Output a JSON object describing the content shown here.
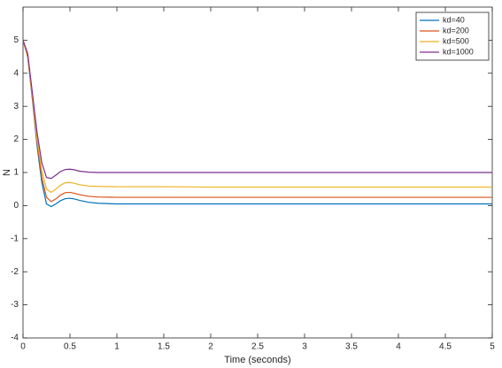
{
  "chart_data": {
    "type": "line",
    "xlabel": "Time (seconds)",
    "ylabel": "N",
    "x": [
      0,
      0.05,
      0.1,
      0.15,
      0.2,
      0.25,
      0.3,
      0.35,
      0.4,
      0.45,
      0.5,
      0.55,
      0.6,
      0.7,
      0.8,
      1,
      1.5,
      2,
      3,
      4,
      5
    ],
    "series": [
      {
        "name": "kd=40",
        "color": "#0072bd",
        "values": [
          5,
          4.5,
          3.2,
          1.8,
          0.7,
          0.05,
          -0.03,
          0.05,
          0.15,
          0.21,
          0.22,
          0.2,
          0.16,
          0.1,
          0.07,
          0.05,
          0.05,
          0.05,
          0.05,
          0.05,
          0.05
        ]
      },
      {
        "name": "kd=200",
        "color": "#d95319",
        "values": [
          5,
          4.5,
          3.25,
          1.9,
          0.85,
          0.25,
          0.12,
          0.2,
          0.32,
          0.39,
          0.4,
          0.37,
          0.33,
          0.28,
          0.26,
          0.25,
          0.25,
          0.25,
          0.25,
          0.25,
          0.25
        ]
      },
      {
        "name": "kd=500",
        "color": "#edb120",
        "values": [
          5,
          4.55,
          3.3,
          2.0,
          1.05,
          0.5,
          0.4,
          0.5,
          0.62,
          0.69,
          0.7,
          0.67,
          0.63,
          0.59,
          0.58,
          0.57,
          0.57,
          0.56,
          0.56,
          0.56,
          0.56
        ]
      },
      {
        "name": "kd=1000",
        "color": "#7e2f8e",
        "values": [
          5,
          4.6,
          3.4,
          2.2,
          1.3,
          0.85,
          0.82,
          0.92,
          1.03,
          1.09,
          1.1,
          1.08,
          1.04,
          1.01,
          1.0,
          1.0,
          1.0,
          1.0,
          1.0,
          1.0,
          1.0
        ]
      }
    ],
    "xlim": [
      0,
      5
    ],
    "xticks": [
      0,
      0.5,
      1,
      1.5,
      2,
      2.5,
      3,
      3.5,
      4,
      4.5,
      5
    ],
    "ylim": [
      -4,
      6
    ],
    "yticks": [
      -4,
      -3,
      -2,
      -1,
      0,
      1,
      2,
      3,
      4,
      5
    ],
    "legend": "top-right"
  }
}
